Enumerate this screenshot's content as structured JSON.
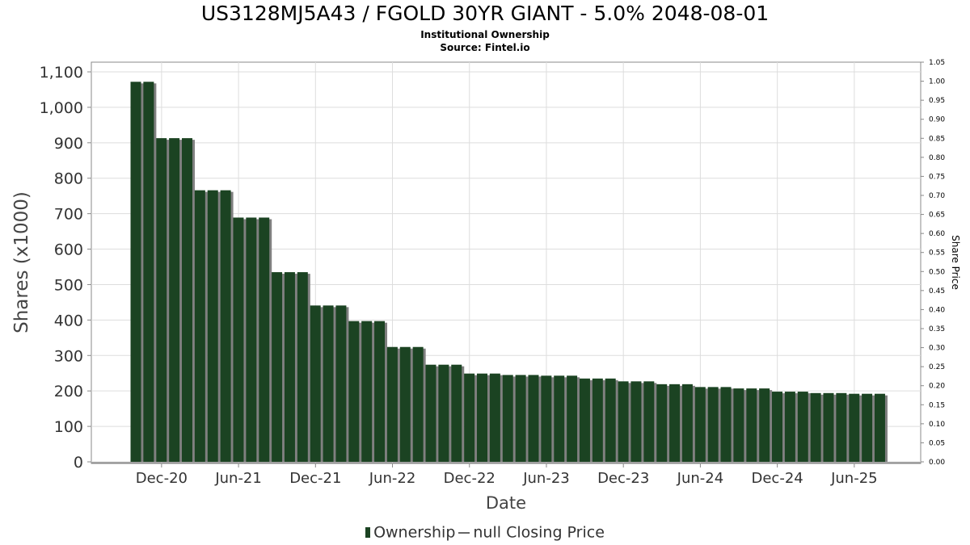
{
  "chart_data": {
    "type": "bar",
    "title": "US3128MJ5A43 / FGOLD 30YR GIANT - 5.0% 2048-08-01",
    "subtitle": "Institutional Ownership",
    "source": "Source: Fintel.io",
    "xlabel": "Date",
    "ylabel": "Shares (x1000)",
    "y2label": "Share Price",
    "ylim": [
      0,
      1100
    ],
    "y_ticks": [
      "0",
      "100",
      "200",
      "300",
      "400",
      "500",
      "600",
      "700",
      "800",
      "900",
      "1,000",
      "1,100"
    ],
    "y2lim": [
      0,
      1.05
    ],
    "y2_ticks": [
      "0.00",
      "0.05",
      "0.10",
      "0.15",
      "0.20",
      "0.25",
      "0.30",
      "0.35",
      "0.40",
      "0.45",
      "0.50",
      "0.55",
      "0.60",
      "0.65",
      "0.70",
      "0.75",
      "0.80",
      "0.85",
      "0.90",
      "0.95",
      "1.00",
      "1.05"
    ],
    "x_ticks": [
      "Dec-20",
      "Jun-21",
      "Dec-21",
      "Jun-22",
      "Dec-22",
      "Jun-23",
      "Dec-23",
      "Jun-24",
      "Dec-24",
      "Jun-25"
    ],
    "grid": true,
    "legend_position": "bottom",
    "series": [
      {
        "name": "Ownership",
        "color": "#1b4322",
        "values": [
          1072,
          1072,
          913,
          913,
          913,
          766,
          766,
          766,
          689,
          689,
          689,
          535,
          535,
          535,
          441,
          441,
          441,
          397,
          397,
          397,
          324,
          324,
          324,
          274,
          274,
          274,
          249,
          249,
          249,
          245,
          245,
          245,
          243,
          243,
          243,
          235,
          235,
          235,
          227,
          227,
          227,
          219,
          219,
          219,
          211,
          211,
          211,
          207,
          207,
          207,
          198,
          198,
          198,
          194,
          194,
          194,
          192,
          192,
          192
        ]
      },
      {
        "name": "null Closing Price",
        "color": "#666666",
        "values": []
      }
    ]
  }
}
